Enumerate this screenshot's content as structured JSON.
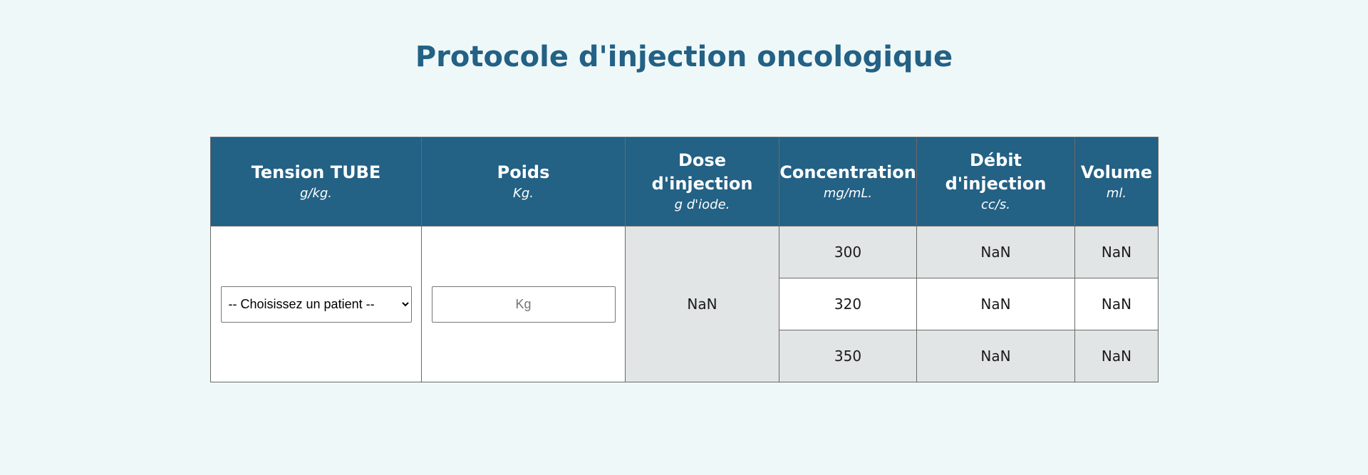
{
  "page": {
    "title": "Protocole d'injection oncologique"
  },
  "table": {
    "headers": [
      {
        "label": "Tension TUBE",
        "unit": "g/kg."
      },
      {
        "label": "Poids",
        "unit": "Kg."
      },
      {
        "label_line1": "Dose",
        "label_line2": "d'injection",
        "unit": "g d'iode."
      },
      {
        "label": "Concentration",
        "unit": "mg/mL."
      },
      {
        "label_line1": "Débit",
        "label_line2": "d'injection",
        "unit": "cc/s."
      },
      {
        "label": "Volume",
        "unit": "ml."
      }
    ],
    "patient_select": {
      "selected": "-- Choisissez un patient --"
    },
    "weight_input": {
      "placeholder": "Kg",
      "value": ""
    },
    "dose_value": "NaN",
    "rows": [
      {
        "concentration": "300",
        "debit": "NaN",
        "volume": "NaN"
      },
      {
        "concentration": "320",
        "debit": "NaN",
        "volume": "NaN"
      },
      {
        "concentration": "350",
        "debit": "NaN",
        "volume": "NaN"
      }
    ]
  },
  "colors": {
    "background": "#eff8f9",
    "header": "#236185",
    "title": "#236185",
    "grey_cell": "#e1e5e6"
  }
}
